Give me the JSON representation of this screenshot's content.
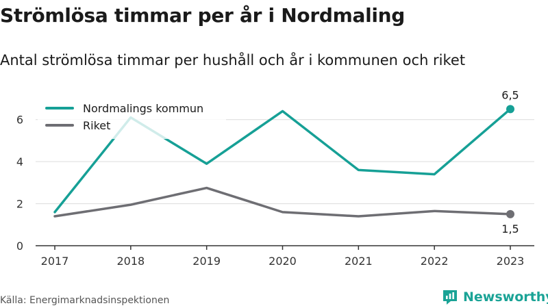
{
  "chart_data": {
    "type": "line",
    "title": "Strömlösa timmar per år i Nordmaling",
    "subtitle": "Antal strömlösa timmar per hushåll och år i kommunen och riket",
    "categories": [
      "2017",
      "2018",
      "2019",
      "2020",
      "2021",
      "2022",
      "2023"
    ],
    "y_ticks": [
      "0",
      "2",
      "4",
      "6"
    ],
    "ylim": [
      0,
      7
    ],
    "grid": true,
    "legend_position": "top-left",
    "series": [
      {
        "name": "Nordmalings kommun",
        "color": "#16a096",
        "values": [
          1.6,
          6.1,
          3.9,
          6.4,
          3.6,
          3.4,
          6.5
        ],
        "end_label": "6,5"
      },
      {
        "name": "Riket",
        "color": "#6e6e73",
        "values": [
          1.4,
          1.95,
          2.75,
          1.6,
          1.4,
          1.65,
          1.5
        ],
        "end_label": "1,5"
      }
    ]
  },
  "footer": {
    "source": "Källa: Energimarknadsinspektionen",
    "brand": "Newsworthy"
  }
}
